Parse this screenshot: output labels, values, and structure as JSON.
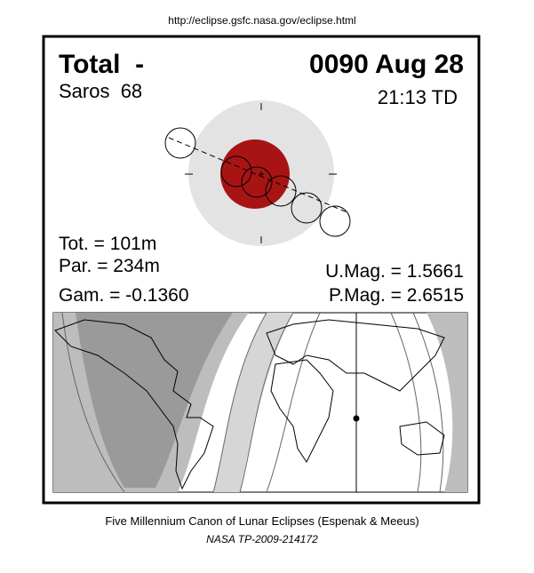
{
  "header": {
    "url": "http://eclipse.gsfc.nasa.gov/eclipse.html"
  },
  "eclipse": {
    "type": "Total  -",
    "date": "0090 Aug 28",
    "saros": "Saros  68",
    "time": "21:13 TD",
    "tot": "Tot. = 101m",
    "par": "Par. = 234m",
    "gam": "Gam. = -0.1360",
    "umag": "U.Mag. = 1.5661",
    "pmag": "P.Mag. = 2.6515"
  },
  "footer": {
    "canon": "Five Millennium Canon of Lunar Eclipses (Espenak & Meeus)",
    "ref": "NASA TP-2009-214172"
  }
}
